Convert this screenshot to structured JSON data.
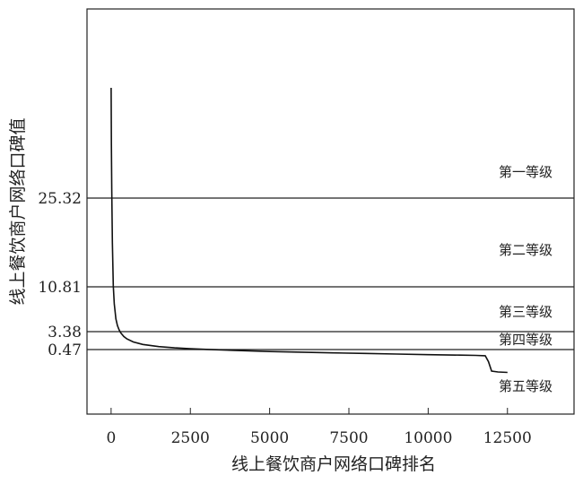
{
  "chart_data": {
    "type": "line",
    "xlabel": "线上餐饮商户网络口碑排名",
    "ylabel": "线上餐饮商户网络口碑值",
    "xlim": [
      -760,
      14600
    ],
    "x_ticks": [
      "0",
      "2500",
      "5000",
      "7500",
      "10000",
      "12500"
    ],
    "x_tick_values": [
      0,
      2500,
      5000,
      7500,
      10000,
      12500
    ],
    "threshold_lines": [
      {
        "value": 25.32,
        "label": "25.32"
      },
      {
        "value": 10.81,
        "label": "10.81"
      },
      {
        "value": 3.38,
        "label": "3.38"
      },
      {
        "value": 0.47,
        "label": "0.47"
      }
    ],
    "bands": [
      {
        "label": "第一等级"
      },
      {
        "label": "第二等级"
      },
      {
        "label": "第三等级"
      },
      {
        "label": "第四等级"
      },
      {
        "label": "第五等级"
      }
    ],
    "series": [
      {
        "points": [
          [
            0,
            60
          ],
          [
            8,
            42
          ],
          [
            20,
            28
          ],
          [
            40,
            18
          ],
          [
            70,
            11
          ],
          [
            100,
            8
          ],
          [
            150,
            5.5
          ],
          [
            200,
            4.4
          ],
          [
            250,
            3.7
          ],
          [
            300,
            3.2
          ],
          [
            400,
            2.6
          ],
          [
            500,
            2.2
          ],
          [
            700,
            1.7
          ],
          [
            1000,
            1.3
          ],
          [
            1500,
            0.95
          ],
          [
            2000,
            0.75
          ],
          [
            2500,
            0.6
          ],
          [
            3000,
            0.5
          ],
          [
            4000,
            0.38
          ],
          [
            5000,
            0.3
          ],
          [
            6000,
            0.24
          ],
          [
            7000,
            0.18
          ],
          [
            8000,
            0.13
          ],
          [
            9000,
            0.08
          ],
          [
            10000,
            0.02
          ],
          [
            11000,
            -0.04
          ],
          [
            11500,
            -0.1
          ],
          [
            11800,
            -0.18
          ],
          [
            11900,
            -1.5
          ],
          [
            12000,
            -3.6
          ],
          [
            12200,
            -3.8
          ],
          [
            12500,
            -3.9
          ]
        ]
      }
    ],
    "grid": false,
    "line_color": "#111111"
  }
}
